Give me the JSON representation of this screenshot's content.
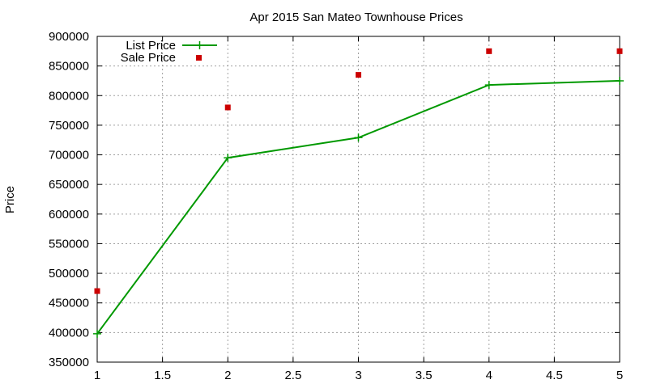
{
  "chart_data": {
    "type": "line",
    "title": "Apr 2015 San Mateo Townhouse Prices",
    "xlabel": "",
    "ylabel": "Price",
    "xlim": [
      1,
      5
    ],
    "ylim": [
      350000,
      900000
    ],
    "x_ticks": [
      "1",
      "1.5",
      "2",
      "2.5",
      "3",
      "3.5",
      "4",
      "4.5",
      "5"
    ],
    "y_ticks": [
      "350000",
      "400000",
      "450000",
      "500000",
      "550000",
      "600000",
      "650000",
      "700000",
      "750000",
      "800000",
      "850000",
      "900000"
    ],
    "grid": true,
    "legend_position": "top-left",
    "series": [
      {
        "name": "List Price",
        "style": "line-plus",
        "color": "#009900",
        "x": [
          1,
          2,
          3,
          4,
          5
        ],
        "values": [
          398000,
          695000,
          729000,
          818000,
          825000
        ]
      },
      {
        "name": "Sale Price",
        "style": "square",
        "color": "#cc0000",
        "x": [
          1,
          2,
          3,
          4,
          5
        ],
        "values": [
          470000,
          780000,
          835000,
          875000,
          875000
        ]
      }
    ]
  }
}
